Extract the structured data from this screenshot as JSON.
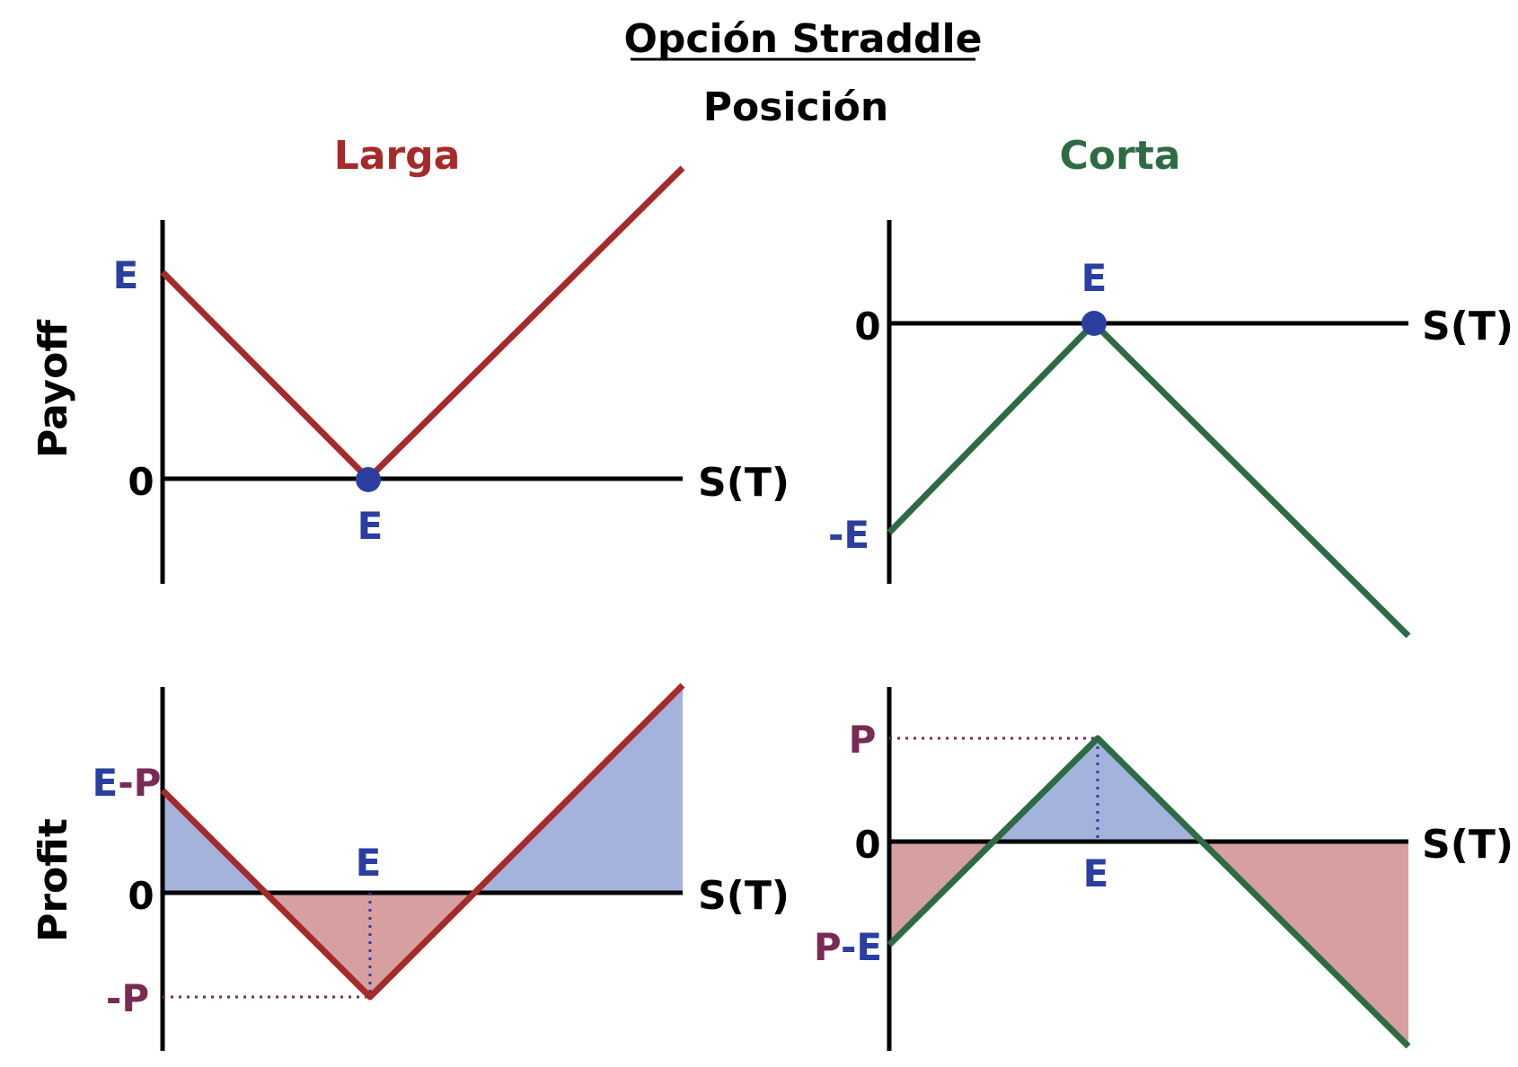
{
  "title": "Opción Straddle",
  "subtitle": "Posición",
  "columns": {
    "long": "Larga",
    "short": "Corta"
  },
  "rows": {
    "payoff": "Payoff",
    "profit": "Profit"
  },
  "axis": {
    "x_label": "S(T)",
    "zero": "0"
  },
  "labels": {
    "strike": "E",
    "neg_strike": "-E",
    "e_minus_p": "E-P",
    "e_part": "E",
    "p_part": "-P",
    "neg_premium": "-P",
    "premium": "P",
    "p_minus_e": "P-E",
    "pe_p": "P",
    "pe_e": "-E"
  },
  "colors": {
    "long_line": "#A52A2A",
    "short_line": "#2E6B45",
    "strike_blue": "#2A3FA0",
    "premium_purple": "#7A2B55",
    "gain_fill": "#A3B3DC",
    "loss_fill": "#D6A0A0",
    "axis": "#000000"
  }
}
